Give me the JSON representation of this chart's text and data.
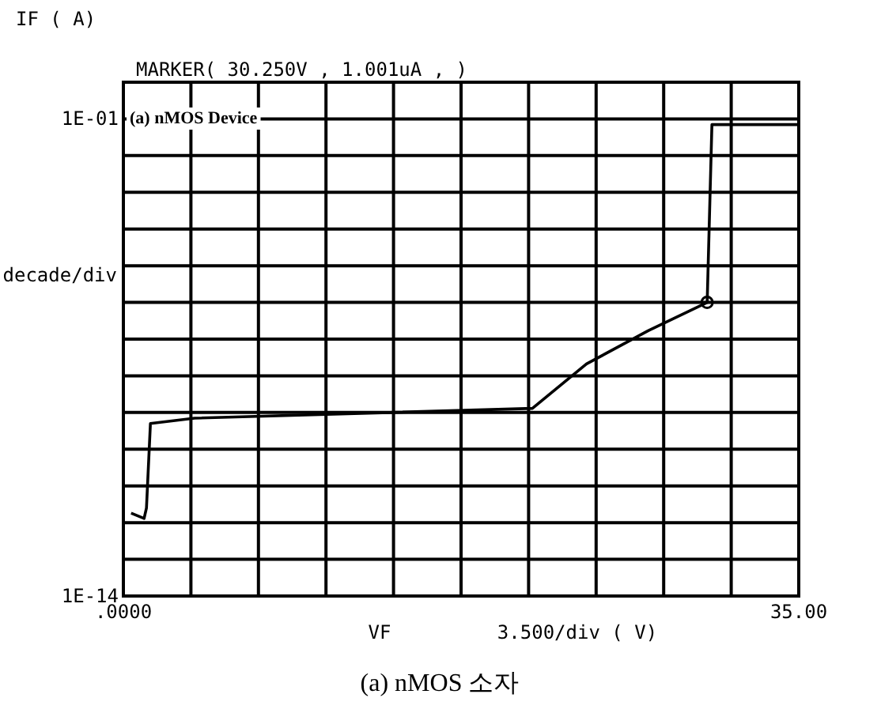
{
  "chart_data": {
    "type": "line",
    "ylabel": "IF ( A)",
    "xlabel": "VF",
    "log": "y",
    "grid": true,
    "xlim": [
      0,
      35
    ],
    "ylim": [
      1e-14,
      1
    ],
    "xticks": [
      {
        "value": 0,
        "label": ".0000"
      },
      {
        "value": 3.5,
        "label": null
      },
      {
        "value": 7,
        "label": null
      },
      {
        "value": 10.5,
        "label": null
      },
      {
        "value": 14,
        "label": null
      },
      {
        "value": 17.5,
        "label": null
      },
      {
        "value": 21,
        "label": null
      },
      {
        "value": 24.5,
        "label": null
      },
      {
        "value": 28,
        "label": null
      },
      {
        "value": 31.5,
        "label": null
      },
      {
        "value": 35,
        "label": "35.00"
      }
    ],
    "yticks": [
      {
        "value": 1e-14,
        "label": "1E-14"
      },
      {
        "value": 1e-13,
        "label": null
      },
      {
        "value": 1e-12,
        "label": null
      },
      {
        "value": 1e-11,
        "label": null
      },
      {
        "value": 1e-10,
        "label": null
      },
      {
        "value": 1e-09,
        "label": null
      },
      {
        "value": 1e-08,
        "label": null
      },
      {
        "value": 1e-07,
        "label": null
      },
      {
        "value": 1e-06,
        "label": null
      },
      {
        "value": 1e-05,
        "label": null
      },
      {
        "value": 0.0001,
        "label": null
      },
      {
        "value": 0.001,
        "label": null
      },
      {
        "value": 0.01,
        "label": null
      },
      {
        "value": 0.1,
        "label": "1E-01"
      },
      {
        "value": 1,
        "label": null
      }
    ],
    "series": [
      {
        "color": "#000000",
        "x": [
          0.4,
          1.07,
          1.2,
          1.4,
          3.7,
          21.2,
          24.0,
          27.2,
          30.25,
          30.5,
          35
        ],
        "values": [
          1.8e-12,
          1.3e-12,
          2.5e-12,
          5e-10,
          7e-10,
          1.3e-09,
          2.1e-08,
          1.7e-07,
          1e-06,
          0.07,
          0.07
        ]
      },
      {
        "type": "scatter",
        "color": "#000000",
        "x": [
          30.25
        ],
        "values": [
          1e-06
        ]
      }
    ],
    "annotations": [
      "MARKER( 30.250V , 1.001uA , )",
      "(a) nMOS Device",
      "decade/div",
      "3.500/div ( V)",
      "(a) nMOS 소자"
    ]
  }
}
